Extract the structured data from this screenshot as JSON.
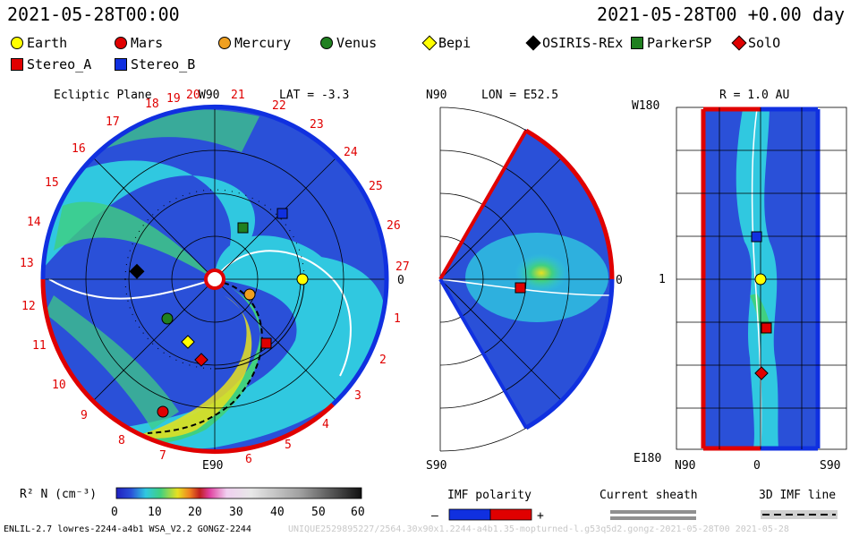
{
  "header": {
    "timestamp": "2021-05-28T00:00",
    "model_time": "2021-05-28T00 +0.00 day"
  },
  "legend": {
    "items": [
      {
        "label": "Earth",
        "color": "#ffff00",
        "shape": "circle"
      },
      {
        "label": "Mars",
        "color": "#e00000",
        "shape": "circle"
      },
      {
        "label": "Mercury",
        "color": "#f0a020",
        "shape": "circle"
      },
      {
        "label": "Venus",
        "color": "#208020",
        "shape": "circle"
      },
      {
        "label": "Bepi",
        "color": "#ffff00",
        "shape": "diamond"
      },
      {
        "label": "OSIRIS-REx",
        "color": "#000000",
        "shape": "diamond"
      },
      {
        "label": "ParkerSP",
        "color": "#208020",
        "shape": "square"
      },
      {
        "label": "SolO",
        "color": "#e00000",
        "shape": "diamond"
      },
      {
        "label": "Stereo_A",
        "color": "#e00000",
        "shape": "square"
      },
      {
        "label": "Stereo_B",
        "color": "#1030e0",
        "shape": "square"
      }
    ]
  },
  "ecliptic": {
    "title": "Ecliptic Plane",
    "top_label": "W90",
    "bottom_label": "E90",
    "right_label": "0",
    "lat_label": "LAT = -3.3",
    "carrington_numbers": [
      "20",
      "21",
      "22",
      "23",
      "24",
      "25",
      "26",
      "27",
      "1",
      "2",
      "3",
      "4",
      "5",
      "6",
      "7",
      "8",
      "9",
      "10",
      "11",
      "12",
      "13",
      "14",
      "15",
      "16",
      "17",
      "18",
      "19"
    ]
  },
  "meridional": {
    "top_label": "N90",
    "bottom_label": "S90",
    "right_label": "0",
    "lon_label": "LON = E52.5"
  },
  "radial": {
    "r_label": "R = 1.0 AU",
    "top_label": "W180",
    "bottom_label": "E180",
    "mid_label": "1",
    "x_labels": [
      "N90",
      "0",
      "S90"
    ]
  },
  "colorbar": {
    "label": "R² N (cm⁻³)",
    "ticks": [
      "0",
      "10",
      "20",
      "30",
      "40",
      "50",
      "60"
    ]
  },
  "imf": {
    "title": "IMF polarity",
    "minus": "–",
    "plus": "+",
    "current_sheath": "Current sheath",
    "imf_line": "3D IMF line"
  },
  "footer": {
    "left": "ENLIL-2.7 lowres-2244-a4b1 WSA_V2.2 GONGZ-2244",
    "right": "UNIQUE2529895227/2564.30x90x1.2244-a4b1.35-mopturned-l.g53q5d2.gongz-2021-05-28T00   2021-05-28"
  },
  "colors": {
    "bg_blue": "#2a50d8",
    "cyan": "#30c8e0",
    "green": "#40d080",
    "yellow": "#e8e020",
    "rim_blue": "#1030e0",
    "rim_red": "#e00000"
  }
}
